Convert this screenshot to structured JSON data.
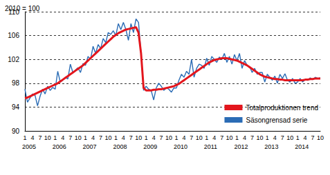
{
  "chart_data": {
    "type": "line",
    "title": "2010 = 100",
    "categories": [
      "1",
      null,
      null,
      "4",
      null,
      null,
      "7",
      null,
      null,
      "10",
      null,
      null,
      "1",
      null,
      null,
      "4",
      null,
      null,
      "7",
      null,
      null,
      "10",
      null,
      null,
      "1",
      null,
      null,
      "4",
      null,
      null,
      "7",
      null,
      null,
      "10",
      null,
      null,
      "1",
      null,
      null,
      "4",
      null,
      null,
      "7",
      null,
      null,
      "10",
      null,
      null,
      "1",
      null,
      null,
      "4",
      null,
      null,
      "7",
      null,
      null,
      "10",
      null,
      null,
      "1",
      null,
      null,
      "4",
      null,
      null,
      "7",
      null,
      null,
      "10",
      null,
      null,
      "1",
      null,
      null,
      "4",
      null,
      null,
      "7",
      null,
      null,
      "10",
      null,
      null,
      "1",
      null,
      null,
      "4",
      null,
      null,
      "7",
      null,
      null,
      "10",
      null,
      null,
      "1",
      null,
      null,
      "4",
      null,
      null,
      "7",
      null,
      null,
      "10",
      null,
      null,
      "1",
      null,
      null,
      "4",
      null,
      null,
      "7",
      null,
      null,
      "10"
    ],
    "year_labels": [
      "2005",
      null,
      null,
      null,
      null,
      null,
      null,
      null,
      null,
      null,
      null,
      null,
      "2006",
      null,
      null,
      null,
      null,
      null,
      null,
      null,
      null,
      null,
      null,
      null,
      "2007",
      null,
      null,
      null,
      null,
      null,
      null,
      null,
      null,
      null,
      null,
      null,
      "2008",
      null,
      null,
      null,
      null,
      null,
      null,
      null,
      null,
      null,
      null,
      null,
      "2009",
      null,
      null,
      null,
      null,
      null,
      null,
      null,
      null,
      null,
      null,
      null,
      "2010",
      null,
      null,
      null,
      null,
      null,
      null,
      null,
      null,
      null,
      null,
      null,
      "2011",
      null,
      null,
      null,
      null,
      null,
      null,
      null,
      null,
      null,
      null,
      null,
      "2012",
      null,
      null,
      null,
      null,
      null,
      null,
      null,
      null,
      null,
      null,
      null,
      "2013",
      null,
      null,
      null,
      null,
      null,
      null,
      null,
      null,
      null,
      null,
      null,
      "2014",
      null,
      null,
      null,
      null,
      null,
      null,
      null,
      null,
      null
    ],
    "series": [
      {
        "name": "Totalproduktionen trend",
        "color": "#e3161d",
        "values": [
          95.5,
          95.6,
          95.8,
          96.0,
          96.2,
          96.4,
          96.6,
          96.8,
          97.0,
          97.2,
          97.4,
          97.6,
          97.8,
          98.0,
          98.3,
          98.6,
          98.9,
          99.2,
          99.5,
          99.8,
          100.1,
          100.4,
          100.7,
          101.0,
          101.4,
          101.8,
          102.2,
          102.6,
          103.0,
          103.4,
          103.8,
          104.2,
          104.6,
          105.0,
          105.4,
          105.8,
          106.1,
          106.4,
          106.6,
          106.8,
          107.0,
          107.1,
          107.2,
          107.3,
          107.4,
          106.5,
          103.0,
          97.2,
          96.8,
          96.8,
          96.8,
          96.9,
          96.9,
          97.0,
          97.0,
          97.1,
          97.2,
          97.3,
          97.4,
          97.5,
          97.7,
          97.9,
          98.2,
          98.5,
          98.8,
          99.1,
          99.4,
          99.7,
          100.0,
          100.3,
          100.6,
          100.9,
          101.2,
          101.5,
          101.7,
          101.9,
          102.0,
          102.1,
          102.2,
          102.2,
          102.2,
          102.1,
          102.0,
          101.9,
          101.8,
          101.6,
          101.4,
          101.2,
          101.0,
          100.7,
          100.4,
          100.1,
          99.8,
          99.5,
          99.3,
          99.1,
          99.0,
          98.9,
          98.8,
          98.7,
          98.7,
          98.6,
          98.6,
          98.5,
          98.5,
          98.5,
          98.5,
          98.5,
          98.5,
          98.5,
          98.5,
          98.6,
          98.6,
          98.7,
          98.7,
          98.8,
          98.8,
          98.8
        ]
      },
      {
        "name": "Säsongrensad serie",
        "color": "#2b6cb5",
        "values": [
          97.0,
          94.8,
          95.5,
          96.2,
          96.0,
          94.2,
          95.8,
          97.0,
          96.2,
          97.5,
          96.8,
          97.3,
          97.0,
          100.0,
          98.2,
          98.5,
          99.0,
          98.7,
          101.2,
          99.8,
          100.2,
          100.6,
          99.8,
          101.3,
          101.0,
          102.5,
          102.0,
          104.2,
          103.0,
          104.5,
          103.8,
          105.5,
          104.8,
          106.5,
          106.2,
          106.8,
          106.0,
          108.0,
          107.0,
          108.2,
          107.0,
          105.2,
          108.0,
          106.5,
          108.8,
          108.2,
          103.0,
          96.8,
          97.5,
          97.0,
          96.8,
          95.2,
          97.2,
          98.0,
          97.5,
          96.8,
          97.2,
          97.0,
          96.5,
          97.2,
          97.2,
          98.5,
          99.5,
          99.0,
          100.0,
          99.5,
          102.0,
          99.0,
          100.5,
          101.2,
          101.0,
          100.5,
          102.2,
          101.0,
          102.5,
          102.0,
          101.5,
          102.4,
          102.0,
          103.0,
          101.5,
          102.5,
          101.2,
          102.8,
          101.8,
          103.0,
          100.5,
          101.8,
          101.0,
          100.8,
          99.8,
          100.5,
          99.5,
          99.8,
          99.8,
          98.2,
          99.5,
          99.0,
          98.5,
          99.2,
          98.0,
          99.5,
          98.8,
          99.6,
          98.5,
          98.2,
          98.8,
          98.0,
          98.2,
          98.8,
          98.2,
          98.6,
          98.5,
          98.9,
          98.6,
          99.0,
          98.8,
          98.9
        ]
      }
    ],
    "ylim": [
      90,
      110
    ],
    "yticks": [
      90,
      94,
      98,
      102,
      106,
      110
    ],
    "grid": true,
    "legend": "bottom-right"
  }
}
